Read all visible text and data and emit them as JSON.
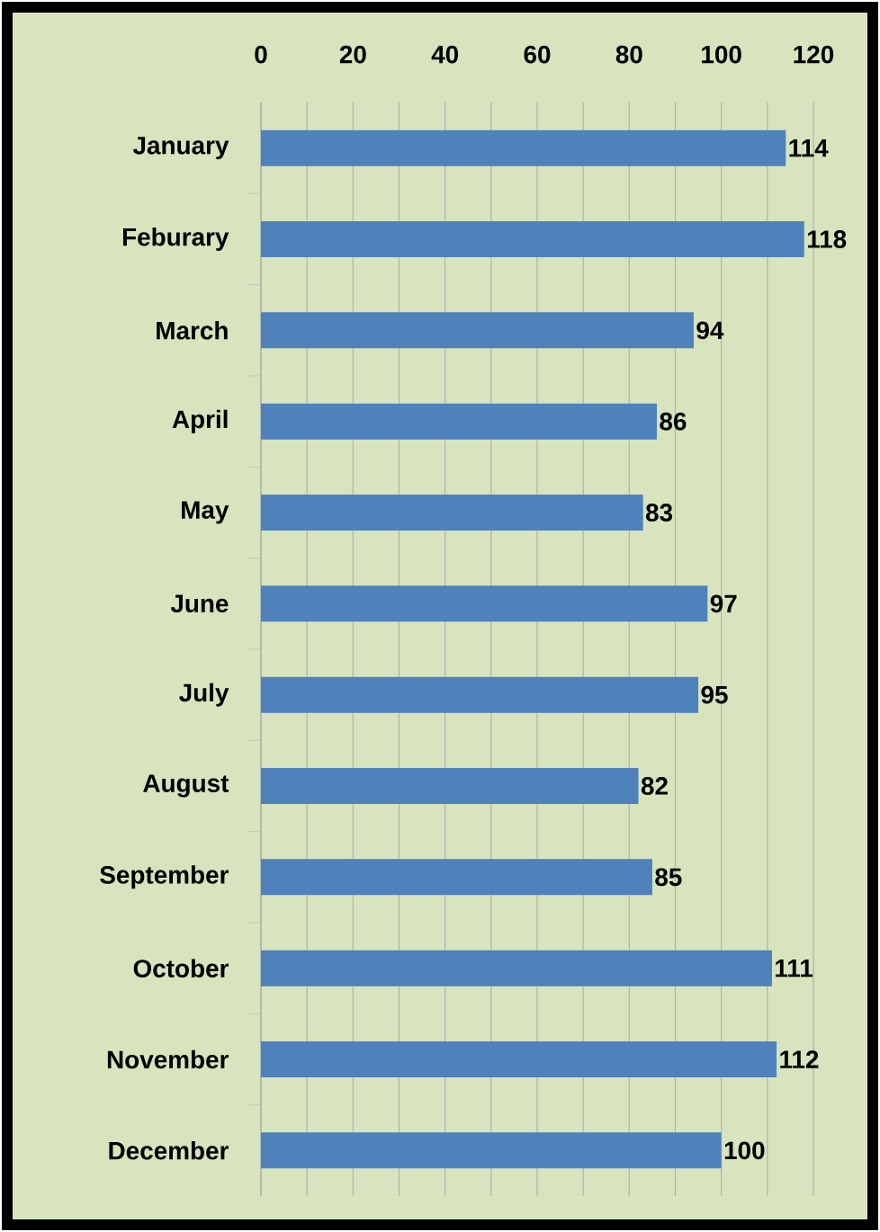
{
  "chart_data": {
    "type": "bar",
    "orientation": "horizontal",
    "categories": [
      "January",
      "Feburary",
      "March",
      "April",
      "May",
      "June",
      "July",
      "August",
      "September",
      "October",
      "November",
      "December"
    ],
    "values": [
      114,
      118,
      94,
      86,
      83,
      97,
      95,
      82,
      85,
      111,
      112,
      100
    ],
    "color": "#4f81bd",
    "xlim": [
      0,
      120
    ],
    "xticks": [
      0,
      20,
      40,
      60,
      80,
      100,
      120
    ],
    "grid": "x",
    "data_labels": true
  }
}
